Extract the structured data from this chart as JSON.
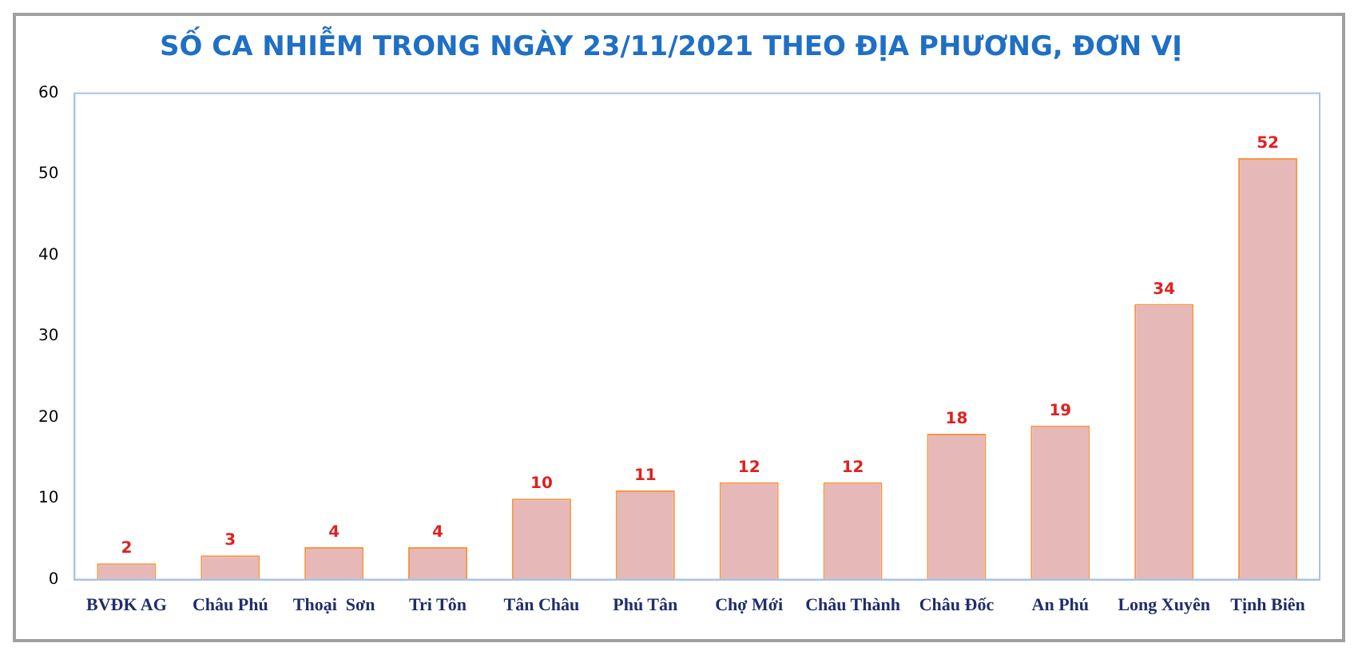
{
  "chart_data": {
    "type": "bar",
    "title": "SỐ CA NHIỄM TRONG NGÀY 23/11/2021 THEO ĐỊA PHƯƠNG, ĐƠN VỊ",
    "categories": [
      "BVĐK AG",
      "Châu Phú",
      "Thoại  Sơn",
      "Tri Tôn",
      "Tân Châu",
      "Phú Tân",
      "Chợ Mới",
      "Châu Thành",
      "Châu Đốc",
      "An Phú",
      "Long Xuyên",
      "Tịnh Biên"
    ],
    "values": [
      2,
      3,
      4,
      4,
      10,
      11,
      12,
      12,
      18,
      19,
      34,
      52
    ],
    "color": "#e6b9b8",
    "ylim": [
      0,
      60
    ],
    "yticks": [
      0,
      10,
      20,
      30,
      40,
      50,
      60
    ],
    "grid": false,
    "legend": false,
    "data_labels": true
  }
}
